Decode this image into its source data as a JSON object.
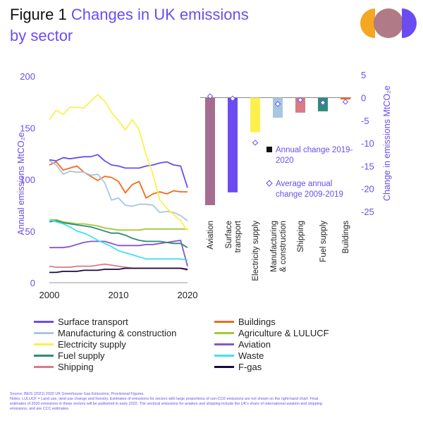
{
  "header": {
    "figure_label": "Figure 1",
    "title_line1": "Changes in UK emissions",
    "title_line2": "by sector"
  },
  "logo": {
    "colors": [
      "#f5a623",
      "#b07a86",
      "#6c4cf0"
    ]
  },
  "chart_data": [
    {
      "type": "line",
      "xlabel": "",
      "ylabel": "Annual emissions MtCO₂e",
      "xlim": [
        2000,
        2020
      ],
      "ylim": [
        0,
        200
      ],
      "x_ticks": [
        "2000",
        "2010",
        "2020"
      ],
      "y_ticks": [
        "0",
        "50",
        "100",
        "150",
        "200"
      ],
      "x": [
        2000,
        2001,
        2002,
        2003,
        2004,
        2005,
        2006,
        2007,
        2008,
        2009,
        2010,
        2011,
        2012,
        2013,
        2014,
        2015,
        2016,
        2017,
        2018,
        2019,
        2020
      ],
      "series": [
        {
          "name": "Surface transport",
          "color": "#6c4cf0",
          "values": [
            119,
            118,
            121,
            120,
            121,
            122,
            122,
            124,
            118,
            114,
            113,
            111,
            111,
            111,
            113,
            114,
            116,
            117,
            114,
            113,
            92
          ]
        },
        {
          "name": "Buildings",
          "color": "#f26b1d",
          "values": [
            114,
            117,
            109,
            111,
            113,
            107,
            103,
            99,
            103,
            102,
            98,
            87,
            95,
            98,
            82,
            86,
            88,
            86,
            89,
            88,
            88
          ]
        },
        {
          "name": "Manufacturing & construction",
          "color": "#a9c6e0",
          "values": [
            118,
            114,
            105,
            108,
            107,
            107,
            104,
            105,
            97,
            80,
            82,
            75,
            74,
            76,
            76,
            75,
            68,
            69,
            68,
            65,
            60
          ]
        },
        {
          "name": "Agriculture & LULUCF",
          "color": "#a3c93a",
          "values": [
            61,
            61,
            59,
            58,
            57,
            57,
            56,
            55,
            53,
            52,
            51,
            51,
            51,
            51,
            52,
            52,
            52,
            52,
            52,
            52,
            52
          ]
        },
        {
          "name": "Electricity supply",
          "color": "#fdf04e",
          "values": [
            158,
            167,
            163,
            170,
            170,
            169,
            176,
            182,
            176,
            165,
            157,
            148,
            158,
            148,
            124,
            105,
            80,
            72,
            66,
            60,
            50
          ]
        },
        {
          "name": "Aviation",
          "color": "#8a55c9",
          "values": [
            34,
            34,
            34,
            35,
            37,
            39,
            40,
            40,
            40,
            38,
            36,
            36,
            36,
            36,
            37,
            37,
            38,
            39,
            40,
            41,
            16
          ]
        },
        {
          "name": "Fuel supply",
          "color": "#2e8b7a",
          "values": [
            59,
            60,
            58,
            57,
            56,
            55,
            54,
            52,
            50,
            48,
            48,
            46,
            43,
            41,
            40,
            40,
            40,
            39,
            38,
            38,
            34
          ]
        },
        {
          "name": "Waste",
          "color": "#3ee3f0",
          "values": [
            61,
            59,
            57,
            54,
            50,
            48,
            45,
            41,
            38,
            35,
            31,
            29,
            27,
            25,
            23,
            23,
            23,
            23,
            23,
            23,
            22
          ]
        },
        {
          "name": "Shipping",
          "color": "#d97a86",
          "values": [
            16,
            15,
            15,
            15,
            16,
            16,
            16,
            17,
            18,
            17,
            16,
            15,
            14,
            14,
            14,
            14,
            14,
            14,
            14,
            14,
            12
          ]
        },
        {
          "name": "F-gas",
          "color": "#1a0a3c",
          "values": [
            10,
            10,
            11,
            11,
            11,
            12,
            12,
            12,
            13,
            13,
            13,
            14,
            14,
            14,
            14,
            14,
            14,
            14,
            14,
            14,
            13
          ]
        }
      ]
    },
    {
      "type": "bar",
      "ylabel": "Change in emissions MtCO₂e",
      "ylim": [
        -25,
        5
      ],
      "y_ticks": [
        "5",
        "0",
        "-5",
        "-10",
        "-15",
        "-20",
        "-25"
      ],
      "categories": [
        "Aviation",
        "Surface transport",
        "Electricity supply",
        "Manufacturing & construction",
        "Shipping",
        "Fuel supply",
        "Buildings"
      ],
      "category_labels": [
        [
          "Aviation"
        ],
        [
          "Surface",
          "transport"
        ],
        [
          "Electricity supply"
        ],
        [
          "Manufacturing",
          "& construction"
        ],
        [
          "Shipping"
        ],
        [
          "Fuel supply"
        ],
        [
          "Buildings"
        ]
      ],
      "series": [
        {
          "name": "Annual change 2019-2020",
          "colors": [
            "#a66c8f",
            "#6c4cf0",
            "#fdf04e",
            "#a9c6e0",
            "#d97a86",
            "#2e8b7a",
            "#f26b1d"
          ],
          "values": [
            -23.6,
            -20.8,
            -7.6,
            -4.4,
            -3.3,
            -3.0,
            -0.4
          ]
        },
        {
          "name": "Average annual change 2009-2019",
          "marker": "diamond",
          "values": [
            0.3,
            -0.2,
            -9.9,
            -1.4,
            -0.5,
            -1.1,
            -0.9
          ]
        }
      ],
      "legend": [
        {
          "label_lines": [
            "Annual change 2019-",
            "2020"
          ],
          "marker": "square"
        },
        {
          "label_lines": [
            "Average annual",
            "change 2009-2019"
          ],
          "marker": "diamond"
        }
      ]
    }
  ],
  "notes": {
    "source": "Source: BEIS (2021) 2020 UK Greenhouse Gas Emissions, Provisional Figures.",
    "line1": "Notes: LULUCF = Land use, land-use change and forestry. Estimates of emissions for sectors with large proportions of non-CO2 emissions are not shown on the right-hand chart. Final",
    "line2": "estimates of 2020 emissions in these sectors will be published in early 2022. The sectoral emissions for aviation and shipping include the UK's share of international aviation and shipping",
    "line3": "emissions, and are CCC estimates."
  }
}
